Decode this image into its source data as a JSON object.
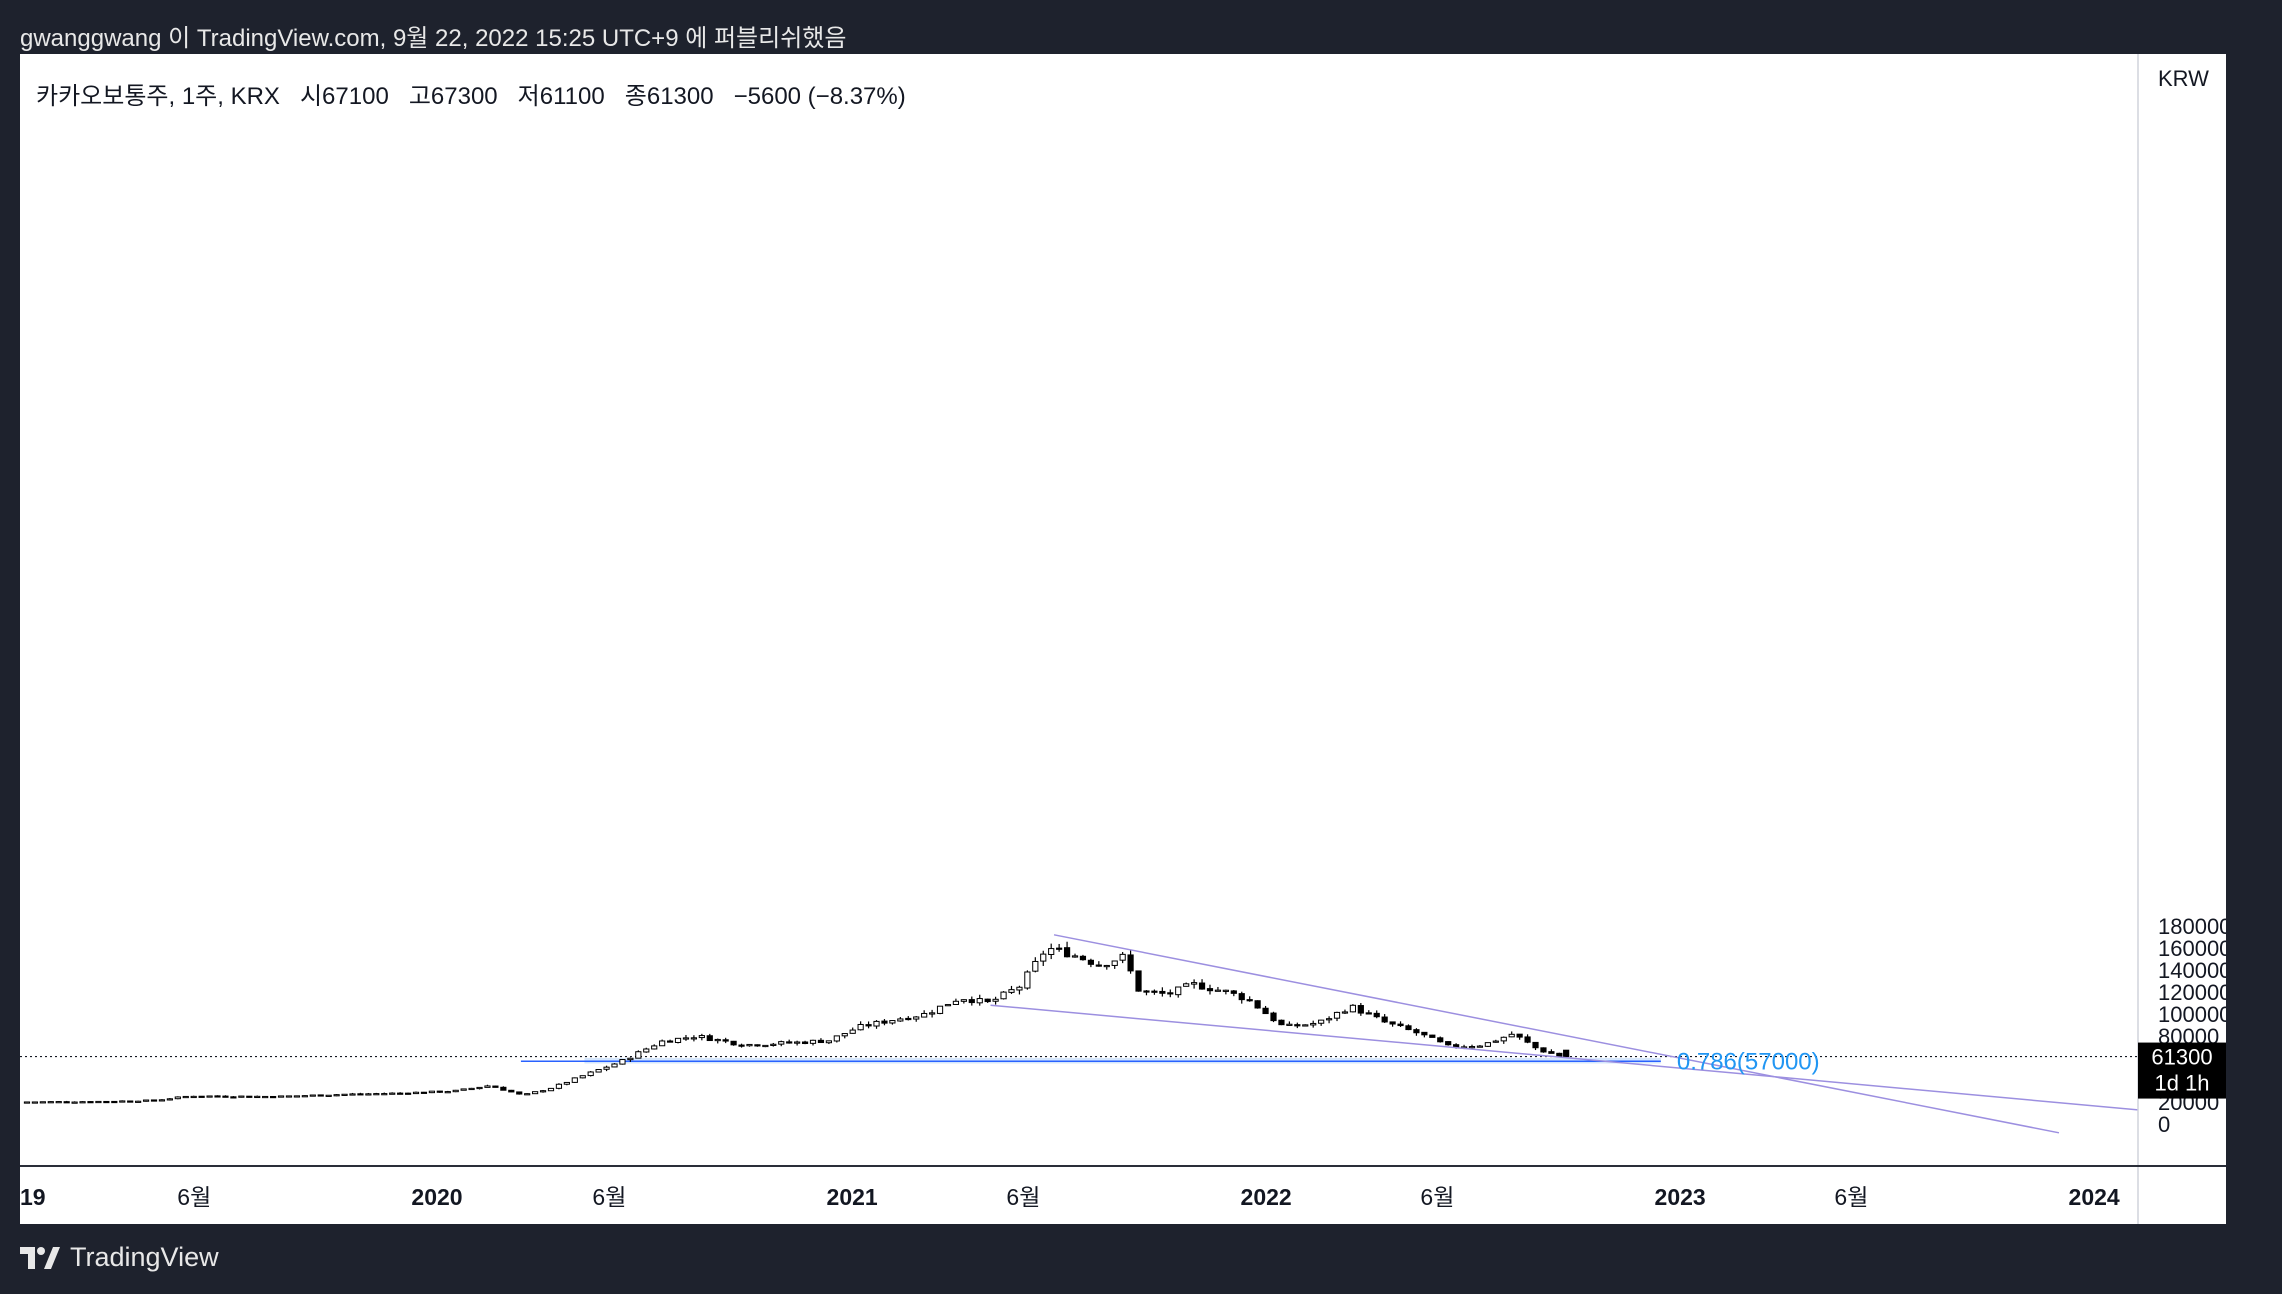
{
  "caption": "gwanggwang 이 TradingView.com, 9월 22, 2022 15:25 UTC+9 에 퍼블리쉬했음",
  "legend": {
    "symbol": "카카오보통주, 1주, KRX",
    "open_label": "시",
    "open": "67100",
    "high_label": "고",
    "high": "67300",
    "low_label": "저",
    "low": "61100",
    "close_label": "종",
    "close": "61300",
    "change": "−5600 (−8.37%)"
  },
  "currency": "KRW",
  "brand": "TradingView",
  "chart_data": {
    "type": "candlestick",
    "y_ticks": [
      "180000",
      "160000",
      "140000",
      "120000",
      "100000",
      "80000",
      "60000",
      "40000",
      "20000",
      "0"
    ],
    "y_tick_values": [
      180000,
      160000,
      140000,
      120000,
      100000,
      80000,
      60000,
      40000,
      20000,
      0
    ],
    "x_ticks": [
      {
        "label": "19",
        "date": "2019-01-01",
        "bold": true
      },
      {
        "label": "6월",
        "date": "2019-06-01",
        "bold": false
      },
      {
        "label": "2020",
        "date": "2020-01-01",
        "bold": true
      },
      {
        "label": "6월",
        "date": "2020-06-01",
        "bold": false
      },
      {
        "label": "2021",
        "date": "2021-01-01",
        "bold": true
      },
      {
        "label": "6월",
        "date": "2021-06-01",
        "bold": false
      },
      {
        "label": "2022",
        "date": "2022-01-01",
        "bold": true
      },
      {
        "label": "6월",
        "date": "2022-06-01",
        "bold": false
      },
      {
        "label": "2023",
        "date": "2023-01-01",
        "bold": true
      },
      {
        "label": "6월",
        "date": "2023-06-01",
        "bold": false
      },
      {
        "label": "2024",
        "date": "2024-01-01",
        "bold": true
      }
    ],
    "price_line": {
      "value": 61300,
      "label": "61300",
      "sublabel": "1d 1h"
    },
    "fib_zone": {
      "label": "0.786(57000)",
      "level": 57000,
      "top": 60000,
      "bottom": 55000,
      "start": "2020-05-10",
      "end": "2022-12-15",
      "color": "#2962ff",
      "text_color": "#2196f3"
    },
    "trendlines": [
      {
        "from": [
          "2021-06-28",
          172000
        ],
        "to": [
          "2023-12-01",
          -8000
        ],
        "color": "#9c8fe0"
      },
      {
        "from": [
          "2021-05-03",
          108000
        ],
        "to": [
          "2024-03-31",
          8000
        ],
        "color": "#9c8fe0"
      }
    ],
    "waypoints": [
      [
        "2019-01-01",
        20000
      ],
      [
        "2019-03-15",
        20500
      ],
      [
        "2019-05-01",
        21500
      ],
      [
        "2019-06-01",
        25500
      ],
      [
        "2019-08-15",
        25000
      ],
      [
        "2019-10-15",
        27000
      ],
      [
        "2019-12-01",
        28000
      ],
      [
        "2020-01-20",
        30000
      ],
      [
        "2020-02-20",
        35000
      ],
      [
        "2020-03-20",
        26000
      ],
      [
        "2020-04-15",
        33000
      ],
      [
        "2020-05-15",
        45000
      ],
      [
        "2020-06-15",
        57000
      ],
      [
        "2020-07-20",
        75000
      ],
      [
        "2020-08-20",
        80000
      ],
      [
        "2020-10-01",
        72000
      ],
      [
        "2020-11-15",
        74000
      ],
      [
        "2020-12-15",
        76000
      ],
      [
        "2021-01-10",
        88000
      ],
      [
        "2021-02-10",
        95000
      ],
      [
        "2021-03-10",
        100000
      ],
      [
        "2021-04-10",
        115000
      ],
      [
        "2021-05-05",
        110000
      ],
      [
        "2021-06-01",
        125000
      ],
      [
        "2021-06-25",
        160000
      ],
      [
        "2021-07-15",
        155000
      ],
      [
        "2021-08-10",
        145000
      ],
      [
        "2021-09-01",
        152000
      ],
      [
        "2021-09-15",
        120000
      ],
      [
        "2021-10-10",
        118000
      ],
      [
        "2021-11-01",
        127000
      ],
      [
        "2021-12-01",
        120000
      ],
      [
        "2021-12-20",
        113000
      ],
      [
        "2022-01-20",
        88000
      ],
      [
        "2022-02-20",
        92000
      ],
      [
        "2022-03-20",
        107000
      ],
      [
        "2022-04-20",
        92000
      ],
      [
        "2022-05-20",
        82000
      ],
      [
        "2022-06-15",
        70000
      ],
      [
        "2022-07-15",
        72000
      ],
      [
        "2022-08-10",
        82000
      ],
      [
        "2022-09-01",
        68000
      ],
      [
        "2022-09-22",
        61300
      ]
    ],
    "last_candle": {
      "date": "2022-09-19",
      "open": 67100,
      "high": 67300,
      "low": 61100,
      "close": 61300
    }
  }
}
